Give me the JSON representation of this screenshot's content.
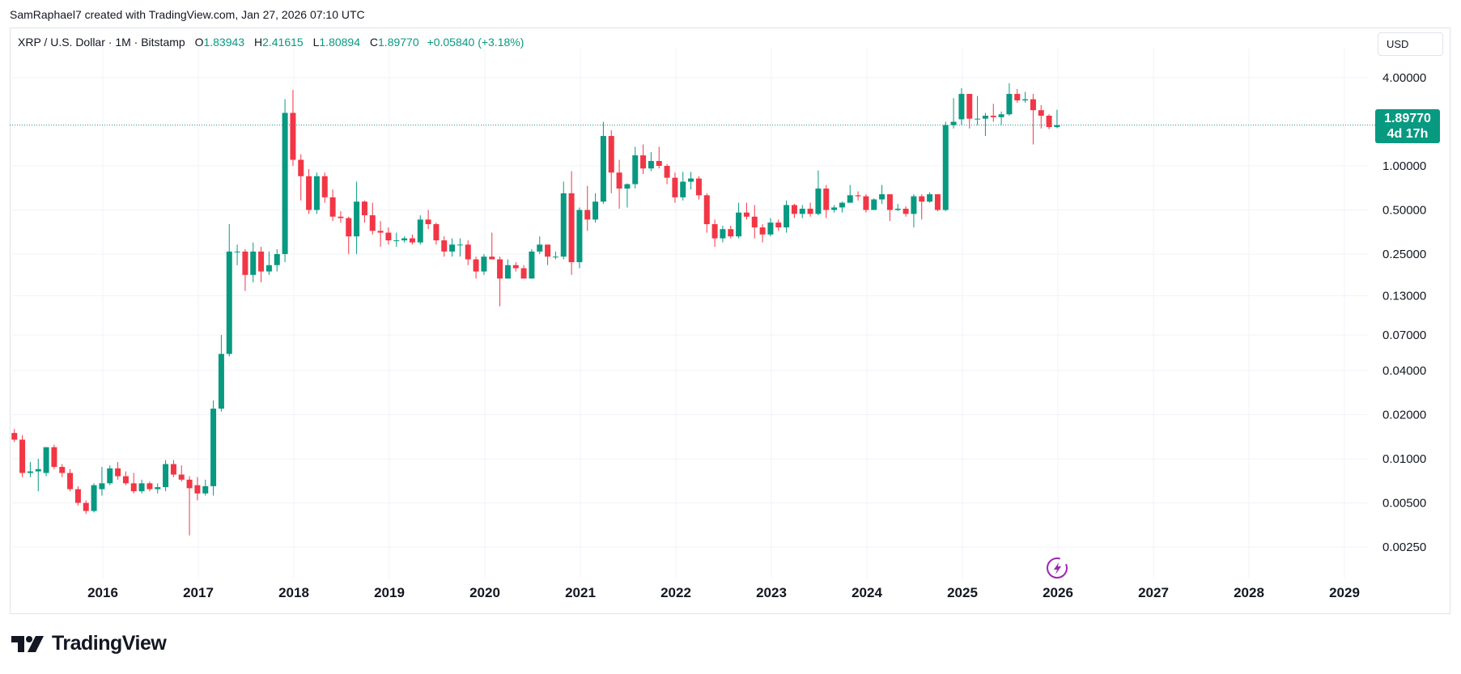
{
  "header": {
    "credit": "SamRaphael7 created with TradingView.com, Jan 27, 2026 07:10 UTC"
  },
  "legend": {
    "symbol": "XRP / U.S. Dollar · 1M · Bitstamp",
    "open_label": "O",
    "open": "1.83943",
    "high_label": "H",
    "high": "2.41615",
    "low_label": "L",
    "low": "1.80894",
    "close_label": "C",
    "close": "1.89770",
    "change": "+0.05840 (+3.18%)"
  },
  "currency": "USD",
  "price_tag": {
    "price": "1.89770",
    "countdown": "4d 17h"
  },
  "footer": {
    "brand": "TradingView"
  },
  "colors": {
    "up": "#089981",
    "down": "#F23645",
    "grid": "#f0f3fa",
    "price_line": "#089981"
  },
  "chart_data": {
    "type": "candlestick",
    "scale": "log",
    "x_ticks": [
      "2016",
      "2017",
      "2018",
      "2019",
      "2020",
      "2021",
      "2022",
      "2023",
      "2024",
      "2025",
      "2026",
      "2027",
      "2028",
      "2029"
    ],
    "y_ticks": [
      "4.00000",
      "1.00000",
      "0.50000",
      "0.25000",
      "0.13000",
      "0.07000",
      "0.04000",
      "0.02000",
      "0.01000",
      "0.00500",
      "0.00250"
    ],
    "last_price": 1.8977,
    "candles": [
      {
        "d": "2015-02",
        "o": 0.015,
        "h": 0.016,
        "l": 0.013,
        "c": 0.0135
      },
      {
        "d": "2015-03",
        "o": 0.0135,
        "h": 0.0145,
        "l": 0.0075,
        "c": 0.008
      },
      {
        "d": "2015-04",
        "o": 0.008,
        "h": 0.0095,
        "l": 0.0075,
        "c": 0.0082
      },
      {
        "d": "2015-05",
        "o": 0.0082,
        "h": 0.01,
        "l": 0.006,
        "c": 0.0085
      },
      {
        "d": "2015-06",
        "o": 0.008,
        "h": 0.012,
        "l": 0.0076,
        "c": 0.012
      },
      {
        "d": "2015-07",
        "o": 0.012,
        "h": 0.0125,
        "l": 0.0085,
        "c": 0.0088
      },
      {
        "d": "2015-08",
        "o": 0.0088,
        "h": 0.0092,
        "l": 0.0075,
        "c": 0.008
      },
      {
        "d": "2015-09",
        "o": 0.008,
        "h": 0.0085,
        "l": 0.006,
        "c": 0.0062
      },
      {
        "d": "2015-10",
        "o": 0.0062,
        "h": 0.0065,
        "l": 0.0048,
        "c": 0.005
      },
      {
        "d": "2015-11",
        "o": 0.005,
        "h": 0.0052,
        "l": 0.0042,
        "c": 0.0044
      },
      {
        "d": "2015-12",
        "o": 0.0044,
        "h": 0.0068,
        "l": 0.0043,
        "c": 0.0066
      },
      {
        "d": "2016-01",
        "o": 0.0062,
        "h": 0.0088,
        "l": 0.0056,
        "c": 0.0068
      },
      {
        "d": "2016-02",
        "o": 0.0068,
        "h": 0.009,
        "l": 0.0066,
        "c": 0.0086
      },
      {
        "d": "2016-03",
        "o": 0.0086,
        "h": 0.0095,
        "l": 0.0072,
        "c": 0.0076
      },
      {
        "d": "2016-04",
        "o": 0.0076,
        "h": 0.0082,
        "l": 0.0066,
        "c": 0.0068
      },
      {
        "d": "2016-05",
        "o": 0.0068,
        "h": 0.008,
        "l": 0.0058,
        "c": 0.006
      },
      {
        "d": "2016-06",
        "o": 0.006,
        "h": 0.0072,
        "l": 0.0058,
        "c": 0.0068
      },
      {
        "d": "2016-07",
        "o": 0.0068,
        "h": 0.007,
        "l": 0.006,
        "c": 0.0062
      },
      {
        "d": "2016-08",
        "o": 0.0062,
        "h": 0.0068,
        "l": 0.0058,
        "c": 0.0064
      },
      {
        "d": "2016-09",
        "o": 0.0064,
        "h": 0.0098,
        "l": 0.006,
        "c": 0.0092
      },
      {
        "d": "2016-10",
        "o": 0.0092,
        "h": 0.0098,
        "l": 0.0075,
        "c": 0.0078
      },
      {
        "d": "2016-11",
        "o": 0.0078,
        "h": 0.009,
        "l": 0.007,
        "c": 0.0072
      },
      {
        "d": "2016-12",
        "o": 0.0072,
        "h": 0.0076,
        "l": 0.003,
        "c": 0.0063
      },
      {
        "d": "2017-01",
        "o": 0.0066,
        "h": 0.0075,
        "l": 0.0052,
        "c": 0.0058
      },
      {
        "d": "2017-02",
        "o": 0.0058,
        "h": 0.0072,
        "l": 0.0056,
        "c": 0.0065
      },
      {
        "d": "2017-03",
        "o": 0.0065,
        "h": 0.025,
        "l": 0.0056,
        "c": 0.022
      },
      {
        "d": "2017-04",
        "o": 0.022,
        "h": 0.07,
        "l": 0.021,
        "c": 0.052
      },
      {
        "d": "2017-05",
        "o": 0.052,
        "h": 0.4,
        "l": 0.05,
        "c": 0.26
      },
      {
        "d": "2017-06",
        "o": 0.26,
        "h": 0.29,
        "l": 0.21,
        "c": 0.26
      },
      {
        "d": "2017-07",
        "o": 0.26,
        "h": 0.27,
        "l": 0.14,
        "c": 0.18
      },
      {
        "d": "2017-08",
        "o": 0.18,
        "h": 0.3,
        "l": 0.16,
        "c": 0.26
      },
      {
        "d": "2017-09",
        "o": 0.26,
        "h": 0.28,
        "l": 0.16,
        "c": 0.19
      },
      {
        "d": "2017-10",
        "o": 0.19,
        "h": 0.26,
        "l": 0.18,
        "c": 0.21
      },
      {
        "d": "2017-11",
        "o": 0.21,
        "h": 0.27,
        "l": 0.19,
        "c": 0.25
      },
      {
        "d": "2017-12",
        "o": 0.25,
        "h": 2.85,
        "l": 0.22,
        "c": 2.3
      },
      {
        "d": "2018-01",
        "o": 2.3,
        "h": 3.3,
        "l": 1.0,
        "c": 1.1
      },
      {
        "d": "2018-02",
        "o": 1.1,
        "h": 1.2,
        "l": 0.58,
        "c": 0.85
      },
      {
        "d": "2018-03",
        "o": 0.85,
        "h": 0.95,
        "l": 0.47,
        "c": 0.5
      },
      {
        "d": "2018-04",
        "o": 0.5,
        "h": 0.9,
        "l": 0.47,
        "c": 0.85
      },
      {
        "d": "2018-05",
        "o": 0.85,
        "h": 0.9,
        "l": 0.56,
        "c": 0.61
      },
      {
        "d": "2018-06",
        "o": 0.61,
        "h": 0.69,
        "l": 0.42,
        "c": 0.45
      },
      {
        "d": "2018-07",
        "o": 0.45,
        "h": 0.49,
        "l": 0.41,
        "c": 0.44
      },
      {
        "d": "2018-08",
        "o": 0.44,
        "h": 0.45,
        "l": 0.25,
        "c": 0.33
      },
      {
        "d": "2018-09",
        "o": 0.33,
        "h": 0.78,
        "l": 0.25,
        "c": 0.57
      },
      {
        "d": "2018-10",
        "o": 0.57,
        "h": 0.58,
        "l": 0.41,
        "c": 0.46
      },
      {
        "d": "2018-11",
        "o": 0.46,
        "h": 0.56,
        "l": 0.34,
        "c": 0.36
      },
      {
        "d": "2018-12",
        "o": 0.36,
        "h": 0.42,
        "l": 0.28,
        "c": 0.35
      },
      {
        "d": "2019-01",
        "o": 0.35,
        "h": 0.38,
        "l": 0.29,
        "c": 0.31
      },
      {
        "d": "2019-02",
        "o": 0.31,
        "h": 0.35,
        "l": 0.28,
        "c": 0.31
      },
      {
        "d": "2019-03",
        "o": 0.31,
        "h": 0.33,
        "l": 0.3,
        "c": 0.32
      },
      {
        "d": "2019-04",
        "o": 0.32,
        "h": 0.34,
        "l": 0.29,
        "c": 0.3
      },
      {
        "d": "2019-05",
        "o": 0.3,
        "h": 0.46,
        "l": 0.29,
        "c": 0.43
      },
      {
        "d": "2019-06",
        "o": 0.43,
        "h": 0.5,
        "l": 0.37,
        "c": 0.4
      },
      {
        "d": "2019-07",
        "o": 0.4,
        "h": 0.41,
        "l": 0.29,
        "c": 0.31
      },
      {
        "d": "2019-08",
        "o": 0.31,
        "h": 0.33,
        "l": 0.24,
        "c": 0.26
      },
      {
        "d": "2019-09",
        "o": 0.26,
        "h": 0.32,
        "l": 0.24,
        "c": 0.29
      },
      {
        "d": "2019-10",
        "o": 0.29,
        "h": 0.32,
        "l": 0.24,
        "c": 0.29
      },
      {
        "d": "2019-11",
        "o": 0.29,
        "h": 0.31,
        "l": 0.21,
        "c": 0.23
      },
      {
        "d": "2019-12",
        "o": 0.23,
        "h": 0.24,
        "l": 0.17,
        "c": 0.19
      },
      {
        "d": "2020-01",
        "o": 0.19,
        "h": 0.25,
        "l": 0.18,
        "c": 0.24
      },
      {
        "d": "2020-02",
        "o": 0.24,
        "h": 0.35,
        "l": 0.23,
        "c": 0.23
      },
      {
        "d": "2020-03",
        "o": 0.23,
        "h": 0.24,
        "l": 0.11,
        "c": 0.17
      },
      {
        "d": "2020-04",
        "o": 0.17,
        "h": 0.23,
        "l": 0.17,
        "c": 0.21
      },
      {
        "d": "2020-05",
        "o": 0.21,
        "h": 0.22,
        "l": 0.19,
        "c": 0.2
      },
      {
        "d": "2020-06",
        "o": 0.2,
        "h": 0.21,
        "l": 0.17,
        "c": 0.17
      },
      {
        "d": "2020-07",
        "o": 0.17,
        "h": 0.27,
        "l": 0.17,
        "c": 0.26
      },
      {
        "d": "2020-08",
        "o": 0.26,
        "h": 0.33,
        "l": 0.25,
        "c": 0.29
      },
      {
        "d": "2020-09",
        "o": 0.29,
        "h": 0.29,
        "l": 0.21,
        "c": 0.24
      },
      {
        "d": "2020-10",
        "o": 0.24,
        "h": 0.26,
        "l": 0.23,
        "c": 0.24
      },
      {
        "d": "2020-11",
        "o": 0.24,
        "h": 0.78,
        "l": 0.23,
        "c": 0.65
      },
      {
        "d": "2020-12",
        "o": 0.65,
        "h": 0.92,
        "l": 0.18,
        "c": 0.22
      },
      {
        "d": "2021-01",
        "o": 0.22,
        "h": 0.52,
        "l": 0.2,
        "c": 0.5
      },
      {
        "d": "2021-02",
        "o": 0.5,
        "h": 0.73,
        "l": 0.36,
        "c": 0.43
      },
      {
        "d": "2021-03",
        "o": 0.43,
        "h": 0.65,
        "l": 0.41,
        "c": 0.57
      },
      {
        "d": "2021-04",
        "o": 0.57,
        "h": 2.0,
        "l": 0.55,
        "c": 1.6
      },
      {
        "d": "2021-05",
        "o": 1.6,
        "h": 1.75,
        "l": 0.65,
        "c": 0.9
      },
      {
        "d": "2021-06",
        "o": 0.9,
        "h": 1.1,
        "l": 0.51,
        "c": 0.7
      },
      {
        "d": "2021-07",
        "o": 0.7,
        "h": 0.76,
        "l": 0.52,
        "c": 0.75
      },
      {
        "d": "2021-08",
        "o": 0.75,
        "h": 1.35,
        "l": 0.7,
        "c": 1.18
      },
      {
        "d": "2021-09",
        "o": 1.18,
        "h": 1.4,
        "l": 0.88,
        "c": 0.96
      },
      {
        "d": "2021-10",
        "o": 0.96,
        "h": 1.24,
        "l": 0.92,
        "c": 1.08
      },
      {
        "d": "2021-11",
        "o": 1.08,
        "h": 1.35,
        "l": 0.96,
        "c": 1.0
      },
      {
        "d": "2021-12",
        "o": 1.0,
        "h": 1.03,
        "l": 0.75,
        "c": 0.83
      },
      {
        "d": "2022-01",
        "o": 0.83,
        "h": 0.9,
        "l": 0.56,
        "c": 0.61
      },
      {
        "d": "2022-02",
        "o": 0.61,
        "h": 0.91,
        "l": 0.58,
        "c": 0.78
      },
      {
        "d": "2022-03",
        "o": 0.78,
        "h": 0.91,
        "l": 0.69,
        "c": 0.82
      },
      {
        "d": "2022-04",
        "o": 0.82,
        "h": 0.85,
        "l": 0.59,
        "c": 0.63
      },
      {
        "d": "2022-05",
        "o": 0.63,
        "h": 0.65,
        "l": 0.35,
        "c": 0.4
      },
      {
        "d": "2022-06",
        "o": 0.4,
        "h": 0.43,
        "l": 0.28,
        "c": 0.32
      },
      {
        "d": "2022-07",
        "o": 0.32,
        "h": 0.39,
        "l": 0.3,
        "c": 0.37
      },
      {
        "d": "2022-08",
        "o": 0.37,
        "h": 0.39,
        "l": 0.32,
        "c": 0.33
      },
      {
        "d": "2022-09",
        "o": 0.33,
        "h": 0.56,
        "l": 0.32,
        "c": 0.48
      },
      {
        "d": "2022-10",
        "o": 0.48,
        "h": 0.56,
        "l": 0.43,
        "c": 0.45
      },
      {
        "d": "2022-11",
        "o": 0.45,
        "h": 0.54,
        "l": 0.32,
        "c": 0.38
      },
      {
        "d": "2022-12",
        "o": 0.38,
        "h": 0.4,
        "l": 0.3,
        "c": 0.34
      },
      {
        "d": "2023-01",
        "o": 0.34,
        "h": 0.44,
        "l": 0.33,
        "c": 0.41
      },
      {
        "d": "2023-02",
        "o": 0.41,
        "h": 0.43,
        "l": 0.36,
        "c": 0.38
      },
      {
        "d": "2023-03",
        "o": 0.38,
        "h": 0.58,
        "l": 0.35,
        "c": 0.54
      },
      {
        "d": "2023-04",
        "o": 0.54,
        "h": 0.55,
        "l": 0.44,
        "c": 0.47
      },
      {
        "d": "2023-05",
        "o": 0.47,
        "h": 0.54,
        "l": 0.44,
        "c": 0.51
      },
      {
        "d": "2023-06",
        "o": 0.51,
        "h": 0.56,
        "l": 0.45,
        "c": 0.47
      },
      {
        "d": "2023-07",
        "o": 0.47,
        "h": 0.93,
        "l": 0.46,
        "c": 0.7
      },
      {
        "d": "2023-08",
        "o": 0.7,
        "h": 0.74,
        "l": 0.44,
        "c": 0.5
      },
      {
        "d": "2023-09",
        "o": 0.5,
        "h": 0.54,
        "l": 0.48,
        "c": 0.52
      },
      {
        "d": "2023-10",
        "o": 0.52,
        "h": 0.57,
        "l": 0.48,
        "c": 0.56
      },
      {
        "d": "2023-11",
        "o": 0.56,
        "h": 0.74,
        "l": 0.56,
        "c": 0.63
      },
      {
        "d": "2023-12",
        "o": 0.63,
        "h": 0.67,
        "l": 0.58,
        "c": 0.62
      },
      {
        "d": "2024-01",
        "o": 0.62,
        "h": 0.64,
        "l": 0.48,
        "c": 0.5
      },
      {
        "d": "2024-02",
        "o": 0.5,
        "h": 0.6,
        "l": 0.5,
        "c": 0.59
      },
      {
        "d": "2024-03",
        "o": 0.59,
        "h": 0.74,
        "l": 0.55,
        "c": 0.64
      },
      {
        "d": "2024-04",
        "o": 0.64,
        "h": 0.64,
        "l": 0.42,
        "c": 0.5
      },
      {
        "d": "2024-05",
        "o": 0.5,
        "h": 0.55,
        "l": 0.49,
        "c": 0.51
      },
      {
        "d": "2024-06",
        "o": 0.51,
        "h": 0.53,
        "l": 0.45,
        "c": 0.47
      },
      {
        "d": "2024-07",
        "o": 0.47,
        "h": 0.64,
        "l": 0.38,
        "c": 0.62
      },
      {
        "d": "2024-08",
        "o": 0.62,
        "h": 0.64,
        "l": 0.43,
        "c": 0.57
      },
      {
        "d": "2024-09",
        "o": 0.57,
        "h": 0.66,
        "l": 0.56,
        "c": 0.64
      },
      {
        "d": "2024-10",
        "o": 0.64,
        "h": 0.64,
        "l": 0.49,
        "c": 0.5
      },
      {
        "d": "2024-11",
        "o": 0.5,
        "h": 2.0,
        "l": 0.49,
        "c": 1.9
      },
      {
        "d": "2024-12",
        "o": 1.9,
        "h": 2.9,
        "l": 1.8,
        "c": 2.0
      },
      {
        "d": "2025-01",
        "o": 2.08,
        "h": 3.4,
        "l": 1.9,
        "c": 3.1
      },
      {
        "d": "2025-02",
        "o": 3.1,
        "h": 3.1,
        "l": 1.8,
        "c": 2.1
      },
      {
        "d": "2025-03",
        "o": 2.1,
        "h": 3.0,
        "l": 1.9,
        "c": 2.1
      },
      {
        "d": "2025-04",
        "o": 2.1,
        "h": 2.3,
        "l": 1.6,
        "c": 2.2
      },
      {
        "d": "2025-05",
        "o": 2.2,
        "h": 2.65,
        "l": 2.0,
        "c": 2.15
      },
      {
        "d": "2025-06",
        "o": 2.15,
        "h": 2.35,
        "l": 1.9,
        "c": 2.25
      },
      {
        "d": "2025-07",
        "o": 2.25,
        "h": 3.66,
        "l": 2.2,
        "c": 3.1
      },
      {
        "d": "2025-08",
        "o": 3.1,
        "h": 3.35,
        "l": 2.7,
        "c": 2.8
      },
      {
        "d": "2025-09",
        "o": 2.8,
        "h": 3.2,
        "l": 2.7,
        "c": 2.85
      },
      {
        "d": "2025-10",
        "o": 2.85,
        "h": 3.1,
        "l": 1.4,
        "c": 2.4
      },
      {
        "d": "2025-11",
        "o": 2.4,
        "h": 2.6,
        "l": 1.8,
        "c": 2.2
      },
      {
        "d": "2025-12",
        "o": 2.2,
        "h": 2.25,
        "l": 1.78,
        "c": 1.84
      },
      {
        "d": "2026-01",
        "o": 1.83943,
        "h": 2.41615,
        "l": 1.80894,
        "c": 1.8977
      }
    ]
  }
}
